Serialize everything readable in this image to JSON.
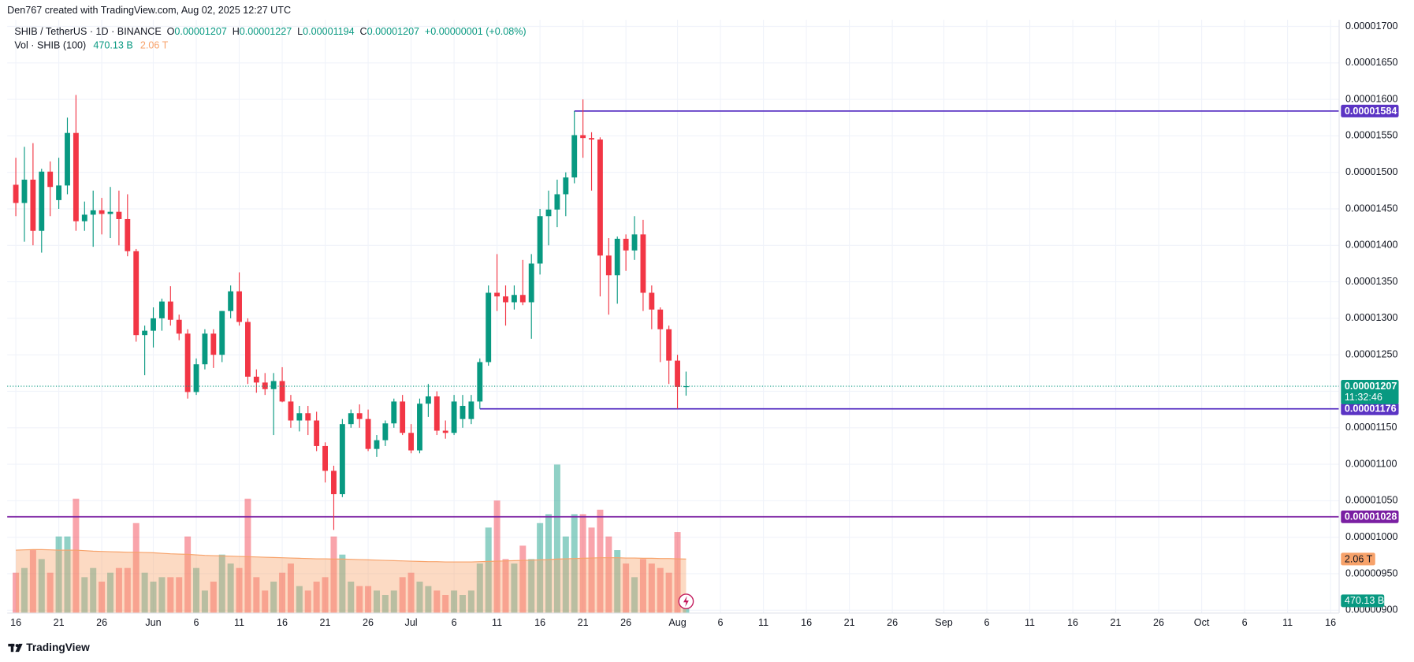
{
  "credit": "Den767 created with TradingView.com, Aug 02, 2025 12:27 UTC",
  "brand": "TradingView",
  "chart_data": {
    "type": "candlestick",
    "title": "SHIB / TetherUS · 1D · BINANCE",
    "ohlc_letters": [
      "O",
      "H",
      "L",
      "C"
    ],
    "change_label": "+0.00000001 (+0.08%)",
    "up_color": "#089981",
    "down_color": "#f23645",
    "grid": true,
    "x": [
      "2025-05-16",
      "2025-05-17",
      "2025-05-18",
      "2025-05-19",
      "2025-05-20",
      "2025-05-21",
      "2025-05-22",
      "2025-05-23",
      "2025-05-24",
      "2025-05-25",
      "2025-05-26",
      "2025-05-27",
      "2025-05-28",
      "2025-05-29",
      "2025-05-30",
      "2025-05-31",
      "2025-06-01",
      "2025-06-02",
      "2025-06-03",
      "2025-06-04",
      "2025-06-05",
      "2025-06-06",
      "2025-06-07",
      "2025-06-08",
      "2025-06-09",
      "2025-06-10",
      "2025-06-11",
      "2025-06-12",
      "2025-06-13",
      "2025-06-14",
      "2025-06-15",
      "2025-06-16",
      "2025-06-17",
      "2025-06-18",
      "2025-06-19",
      "2025-06-20",
      "2025-06-21",
      "2025-06-22",
      "2025-06-23",
      "2025-06-24",
      "2025-06-25",
      "2025-06-26",
      "2025-06-27",
      "2025-06-28",
      "2025-06-29",
      "2025-06-30",
      "2025-07-01",
      "2025-07-02",
      "2025-07-03",
      "2025-07-04",
      "2025-07-05",
      "2025-07-06",
      "2025-07-07",
      "2025-07-08",
      "2025-07-09",
      "2025-07-10",
      "2025-07-11",
      "2025-07-12",
      "2025-07-13",
      "2025-07-14",
      "2025-07-15",
      "2025-07-16",
      "2025-07-17",
      "2025-07-18",
      "2025-07-19",
      "2025-07-20",
      "2025-07-21",
      "2025-07-22",
      "2025-07-23",
      "2025-07-24",
      "2025-07-25",
      "2025-07-26",
      "2025-07-27",
      "2025-07-28",
      "2025-07-29",
      "2025-07-30",
      "2025-07-31",
      "2025-08-01",
      "2025-08-02"
    ],
    "open": [
      1.483e-05,
      1.458e-05,
      1.49e-05,
      1.42e-05,
      1.501e-05,
      1.462e-05,
      1.482e-05,
      1.554e-05,
      1.433e-05,
      1.442e-05,
      1.448e-05,
      1.443e-05,
      1.446e-05,
      1.436e-05,
      1.392e-05,
      1.277e-05,
      1.283e-05,
      1.3e-05,
      1.323e-05,
      1.298e-05,
      1.279e-05,
      1.199e-05,
      1.237e-05,
      1.279e-05,
      1.25e-05,
      1.31e-05,
      1.337e-05,
      1.295e-05,
      1.22e-05,
      1.212e-05,
      1.203e-05,
      1.214e-05,
      1.186e-05,
      1.16e-05,
      1.17e-05,
      1.16e-05,
      1.125e-05,
      1.091e-05,
      1.059e-05,
      1.155e-05,
      1.17e-05,
      1.162e-05,
      1.121e-05,
      1.133e-05,
      1.156e-05,
      1.186e-05,
      1.143e-05,
      1.119e-05,
      1.183e-05,
      1.193e-05,
      1.146e-05,
      1.143e-05,
      1.162e-05,
      1.162e-05,
      1.186e-05,
      1.24e-05,
      1.335e-05,
      1.33e-05,
      1.322e-05,
      1.332e-05,
      1.322e-05,
      1.375e-05,
      1.44e-05,
      1.449e-05,
      1.47e-05,
      1.493e-05,
      1.551e-05,
      1.547e-05,
      1.545e-05,
      1.386e-05,
      1.359e-05,
      1.409e-05,
      1.393e-05,
      1.415e-05,
      1.335e-05,
      1.312e-05,
      1.285e-05,
      1.242e-05,
      1.207e-05
    ],
    "high": [
      1.52e-05,
      1.535e-05,
      1.54e-05,
      1.505e-05,
      1.515e-05,
      1.52e-05,
      1.575e-05,
      1.606e-05,
      1.46e-05,
      1.475e-05,
      1.465e-05,
      1.48e-05,
      1.475e-05,
      1.47e-05,
      1.395e-05,
      1.29e-05,
      1.315e-05,
      1.327e-05,
      1.344e-05,
      1.305e-05,
      1.285e-05,
      1.245e-05,
      1.285e-05,
      1.285e-05,
      1.31e-05,
      1.345e-05,
      1.363e-05,
      1.3e-05,
      1.23e-05,
      1.225e-05,
      1.225e-05,
      1.233e-05,
      1.195e-05,
      1.18e-05,
      1.18e-05,
      1.172e-05,
      1.13e-05,
      1.098e-05,
      1.162e-05,
      1.175e-05,
      1.182e-05,
      1.175e-05,
      1.14e-05,
      1.16e-05,
      1.19e-05,
      1.195e-05,
      1.155e-05,
      1.19e-05,
      1.21e-05,
      1.2e-05,
      1.16e-05,
      1.195e-05,
      1.195e-05,
      1.195e-05,
      1.245e-05,
      1.345e-05,
      1.388e-05,
      1.345e-05,
      1.345e-05,
      1.38e-05,
      1.388e-05,
      1.45e-05,
      1.475e-05,
      1.49e-05,
      1.5e-05,
      1.584e-05,
      1.6e-05,
      1.555e-05,
      1.548e-05,
      1.41e-05,
      1.412e-05,
      1.415e-05,
      1.44e-05,
      1.435e-05,
      1.345e-05,
      1.315e-05,
      1.29e-05,
      1.25e-05,
      1.227e-05
    ],
    "low": [
      1.44e-05,
      1.405e-05,
      1.4e-05,
      1.39e-05,
      1.44e-05,
      1.45e-05,
      1.47e-05,
      1.42e-05,
      1.42e-05,
      1.398e-05,
      1.415e-05,
      1.41e-05,
      1.4e-05,
      1.385e-05,
      1.268e-05,
      1.222e-05,
      1.26e-05,
      1.283e-05,
      1.29e-05,
      1.27e-05,
      1.19e-05,
      1.195e-05,
      1.23e-05,
      1.232e-05,
      1.24e-05,
      1.3e-05,
      1.29e-05,
      1.21e-05,
      1.198e-05,
      1.195e-05,
      1.14e-05,
      1.185e-05,
      1.15e-05,
      1.145e-05,
      1.14e-05,
      1.118e-05,
      1.075e-05,
      1.01e-05,
      1.055e-05,
      1.15e-05,
      1.15e-05,
      1.118e-05,
      1.11e-05,
      1.125e-05,
      1.15e-05,
      1.14e-05,
      1.115e-05,
      1.115e-05,
      1.165e-05,
      1.14e-05,
      1.135e-05,
      1.14e-05,
      1.15e-05,
      1.155e-05,
      1.176e-05,
      1.235e-05,
      1.31e-05,
      1.29e-05,
      1.312e-05,
      1.318e-05,
      1.272e-05,
      1.36e-05,
      1.4e-05,
      1.425e-05,
      1.44e-05,
      1.485e-05,
      1.52e-05,
      1.475e-05,
      1.33e-05,
      1.305e-05,
      1.32e-05,
      1.365e-05,
      1.38e-05,
      1.31e-05,
      1.285e-05,
      1.24e-05,
      1.21e-05,
      1.176e-05,
      1.194e-05
    ],
    "close": [
      1.458e-05,
      1.49e-05,
      1.42e-05,
      1.501e-05,
      1.48e-05,
      1.482e-05,
      1.554e-05,
      1.433e-05,
      1.442e-05,
      1.448e-05,
      1.443e-05,
      1.446e-05,
      1.436e-05,
      1.392e-05,
      1.277e-05,
      1.283e-05,
      1.3e-05,
      1.323e-05,
      1.298e-05,
      1.279e-05,
      1.199e-05,
      1.237e-05,
      1.279e-05,
      1.25e-05,
      1.31e-05,
      1.337e-05,
      1.295e-05,
      1.22e-05,
      1.212e-05,
      1.203e-05,
      1.214e-05,
      1.186e-05,
      1.16e-05,
      1.17e-05,
      1.16e-05,
      1.125e-05,
      1.091e-05,
      1.059e-05,
      1.155e-05,
      1.17e-05,
      1.162e-05,
      1.121e-05,
      1.133e-05,
      1.156e-05,
      1.186e-05,
      1.143e-05,
      1.119e-05,
      1.183e-05,
      1.193e-05,
      1.146e-05,
      1.143e-05,
      1.186e-05,
      1.18e-05,
      1.186e-05,
      1.24e-05,
      1.335e-05,
      1.33e-05,
      1.322e-05,
      1.332e-05,
      1.322e-05,
      1.375e-05,
      1.44e-05,
      1.449e-05,
      1.47e-05,
      1.493e-05,
      1.551e-05,
      1.547e-05,
      1.545e-05,
      1.386e-05,
      1.359e-05,
      1.409e-05,
      1.393e-05,
      1.415e-05,
      1.335e-05,
      1.312e-05,
      1.285e-05,
      1.242e-05,
      1.206e-05,
      1.207e-05
    ],
    "xlim": [
      "2025-05-15",
      "2025-10-17"
    ],
    "xticks": [
      {
        "value": "2025-05-16",
        "label": "16"
      },
      {
        "value": "2025-05-21",
        "label": "21"
      },
      {
        "value": "2025-05-26",
        "label": "26"
      },
      {
        "value": "2025-06-01",
        "label": "Jun"
      },
      {
        "value": "2025-06-06",
        "label": "6"
      },
      {
        "value": "2025-06-11",
        "label": "11"
      },
      {
        "value": "2025-06-16",
        "label": "16"
      },
      {
        "value": "2025-06-21",
        "label": "21"
      },
      {
        "value": "2025-06-26",
        "label": "26"
      },
      {
        "value": "2025-07-01",
        "label": "Jul"
      },
      {
        "value": "2025-07-06",
        "label": "6"
      },
      {
        "value": "2025-07-11",
        "label": "11"
      },
      {
        "value": "2025-07-16",
        "label": "16"
      },
      {
        "value": "2025-07-21",
        "label": "21"
      },
      {
        "value": "2025-07-26",
        "label": "26"
      },
      {
        "value": "2025-08-01",
        "label": "Aug"
      },
      {
        "value": "2025-08-06",
        "label": "6"
      },
      {
        "value": "2025-08-11",
        "label": "11"
      },
      {
        "value": "2025-08-16",
        "label": "16"
      },
      {
        "value": "2025-08-21",
        "label": "21"
      },
      {
        "value": "2025-08-26",
        "label": "26"
      },
      {
        "value": "2025-09-01",
        "label": "Sep"
      },
      {
        "value": "2025-09-06",
        "label": "6"
      },
      {
        "value": "2025-09-11",
        "label": "11"
      },
      {
        "value": "2025-09-16",
        "label": "16"
      },
      {
        "value": "2025-09-21",
        "label": "21"
      },
      {
        "value": "2025-09-26",
        "label": "26"
      },
      {
        "value": "2025-10-01",
        "label": "Oct"
      },
      {
        "value": "2025-10-06",
        "label": "6"
      },
      {
        "value": "2025-10-11",
        "label": "11"
      },
      {
        "value": "2025-10-16",
        "label": "16"
      }
    ],
    "ylim": [
      8.96e-06,
      1.709e-05
    ],
    "yticks": [
      {
        "value": 9e-06,
        "label": "0.00000900"
      },
      {
        "value": 9.5e-06,
        "label": "0.00000950"
      },
      {
        "value": 1e-05,
        "label": "0.00001000"
      },
      {
        "value": 1.05e-05,
        "label": "0.00001050"
      },
      {
        "value": 1.1e-05,
        "label": "0.00001100"
      },
      {
        "value": 1.15e-05,
        "label": "0.00001150"
      },
      {
        "value": 1.2e-05,
        "label": "0.00001200"
      },
      {
        "value": 1.25e-05,
        "label": "0.00001250"
      },
      {
        "value": 1.3e-05,
        "label": "0.00001300"
      },
      {
        "value": 1.35e-05,
        "label": "0.00001350"
      },
      {
        "value": 1.4e-05,
        "label": "0.00001400"
      },
      {
        "value": 1.45e-05,
        "label": "0.00001450"
      },
      {
        "value": 1.5e-05,
        "label": "0.00001500"
      },
      {
        "value": 1.55e-05,
        "label": "0.00001550"
      },
      {
        "value": 1.6e-05,
        "label": "0.00001600"
      },
      {
        "value": 1.65e-05,
        "label": "0.00001650"
      },
      {
        "value": 1.7e-05,
        "label": "0.00001700"
      }
    ],
    "hlines": [
      {
        "value": 1.584e-05,
        "from": "2025-07-20",
        "color": "#5b34c4"
      },
      {
        "value": 1.176e-05,
        "from": "2025-07-09",
        "color": "#5b34c4"
      },
      {
        "value": 1.028e-05,
        "color": "#7a1fa2"
      }
    ],
    "last_price_countdown": "11:32:46",
    "volume": {
      "name": "Vol · SHIB (100)",
      "last_value_label": "470.13 B",
      "ma_last_label": "2.06 T",
      "ma_color": "#f7a26a",
      "ylim": [
        0,
        22600000000000.0
      ],
      "values": [
        1540000000000.0,
        1720000000000.0,
        2400000000000.0,
        2060000000000.0,
        1540000000000.0,
        2920000000000.0,
        2920000000000.0,
        4360000000000.0,
        1370000000000.0,
        1720000000000.0,
        1200000000000.0,
        1540000000000.0,
        1720000000000.0,
        1720000000000.0,
        3430000000000.0,
        1540000000000.0,
        1200000000000.0,
        1370000000000.0,
        1370000000000.0,
        1370000000000.0,
        2920000000000.0,
        1720000000000.0,
        860000000000.0,
        1200000000000.0,
        2230000000000.0,
        1890000000000.0,
        1720000000000.0,
        4360000000000.0,
        1370000000000.0,
        860000000000.0,
        1200000000000.0,
        1540000000000.0,
        1890000000000.0,
        1030000000000.0,
        860000000000.0,
        1200000000000.0,
        1370000000000.0,
        2920000000000.0,
        2230000000000.0,
        1200000000000.0,
        1030000000000.0,
        1030000000000.0,
        860000000000.0,
        690000000000.0,
        860000000000.0,
        1370000000000.0,
        1540000000000.0,
        1200000000000.0,
        1030000000000.0,
        860000000000.0,
        690000000000.0,
        860000000000.0,
        690000000000.0,
        860000000000.0,
        1890000000000.0,
        3260000000000.0,
        4290000000000.0,
        2060000000000.0,
        1890000000000.0,
        2570000000000.0,
        2060000000000.0,
        3430000000000.0,
        3770000000000.0,
        5660000000000.0,
        2920000000000.0,
        3770000000000.0,
        3770000000000.0,
        3260000000000.0,
        3940000000000.0,
        2920000000000.0,
        2400000000000.0,
        1890000000000.0,
        1370000000000.0,
        2060000000000.0,
        1890000000000.0,
        1720000000000.0,
        1540000000000.0,
        3090000000000.0,
        470130000000.0
      ],
      "ma_values": [
        2400000000000.0,
        2410000000000.0,
        2420000000000.0,
        2420000000000.0,
        2410000000000.0,
        2400000000000.0,
        2400000000000.0,
        2400000000000.0,
        2380000000000.0,
        2360000000000.0,
        2350000000000.0,
        2340000000000.0,
        2330000000000.0,
        2320000000000.0,
        2320000000000.0,
        2310000000000.0,
        2300000000000.0,
        2280000000000.0,
        2260000000000.0,
        2250000000000.0,
        2240000000000.0,
        2220000000000.0,
        2200000000000.0,
        2190000000000.0,
        2180000000000.0,
        2170000000000.0,
        2160000000000.0,
        2150000000000.0,
        2140000000000.0,
        2130000000000.0,
        2120000000000.0,
        2110000000000.0,
        2100000000000.0,
        2090000000000.0,
        2080000000000.0,
        2070000000000.0,
        2070000000000.0,
        2060000000000.0,
        2060000000000.0,
        2050000000000.0,
        2040000000000.0,
        2030000000000.0,
        2020000000000.0,
        2010000000000.0,
        2000000000000.0,
        1990000000000.0,
        1980000000000.0,
        1970000000000.0,
        1960000000000.0,
        1960000000000.0,
        1950000000000.0,
        1950000000000.0,
        1950000000000.0,
        1950000000000.0,
        1960000000000.0,
        1970000000000.0,
        1980000000000.0,
        1990000000000.0,
        2000000000000.0,
        2010000000000.0,
        2020000000000.0,
        2030000000000.0,
        2040000000000.0,
        2060000000000.0,
        2070000000000.0,
        2080000000000.0,
        2090000000000.0,
        2100000000000.0,
        2110000000000.0,
        2110000000000.0,
        2110000000000.0,
        2100000000000.0,
        2100000000000.0,
        2090000000000.0,
        2090000000000.0,
        2080000000000.0,
        2080000000000.0,
        2070000000000.0,
        2060000000000.0
      ]
    }
  }
}
